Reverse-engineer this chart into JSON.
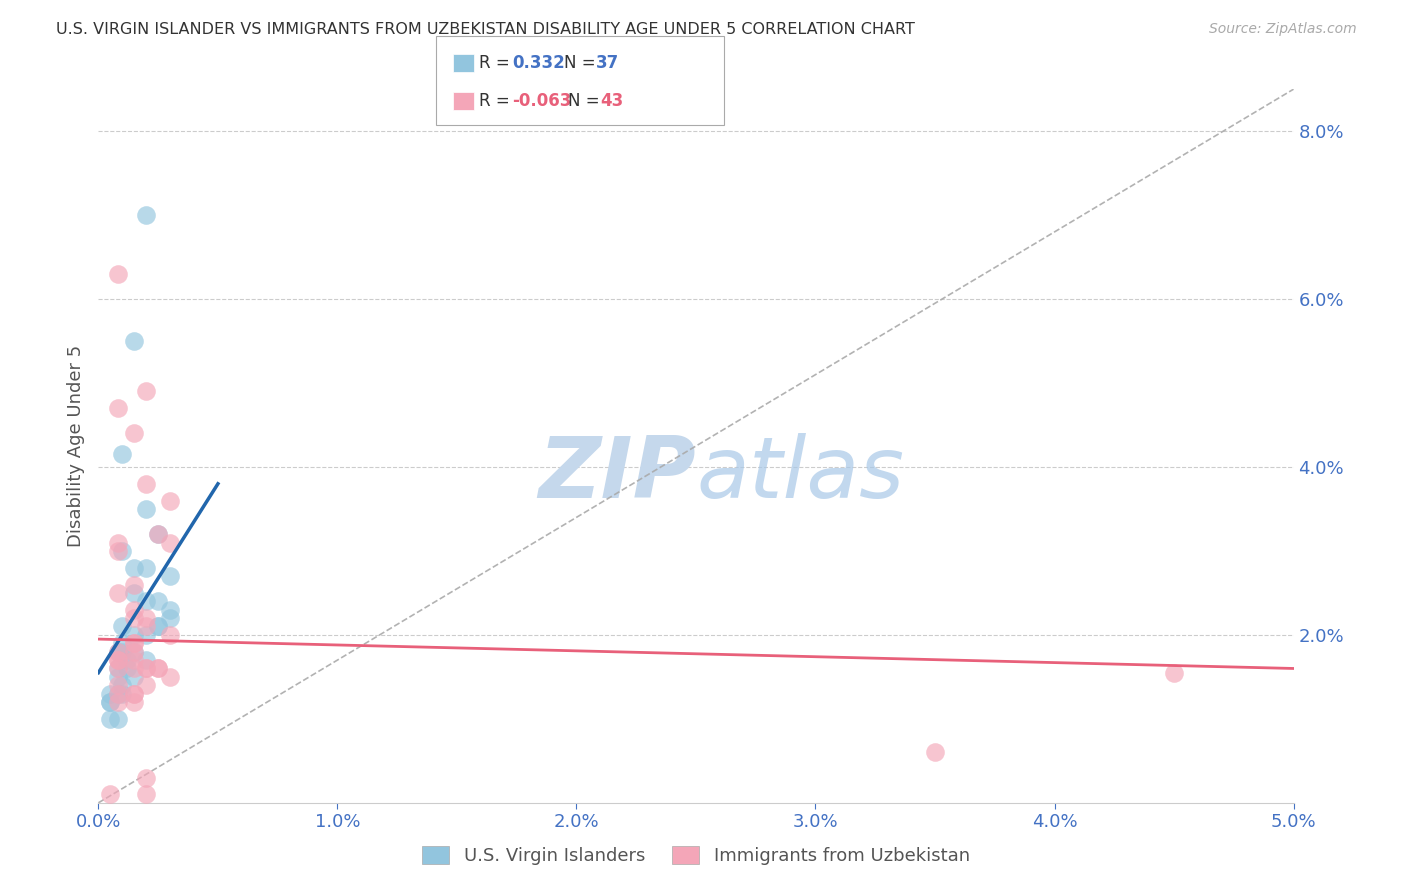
{
  "title": "U.S. VIRGIN ISLANDER VS IMMIGRANTS FROM UZBEKISTAN DISABILITY AGE UNDER 5 CORRELATION CHART",
  "source": "Source: ZipAtlas.com",
  "ylabel": "Disability Age Under 5",
  "xlim": [
    0.0,
    0.05
  ],
  "ylim": [
    0.0,
    0.085
  ],
  "yticks": [
    0.0,
    0.02,
    0.04,
    0.06,
    0.08
  ],
  "ytick_labels": [
    "",
    "2.0%",
    "4.0%",
    "6.0%",
    "8.0%"
  ],
  "xticks": [
    0.0,
    0.01,
    0.02,
    0.03,
    0.04,
    0.05
  ],
  "xtick_labels": [
    "0.0%",
    "1.0%",
    "2.0%",
    "3.0%",
    "4.0%",
    "5.0%"
  ],
  "blue_label": "U.S. Virgin Islanders",
  "pink_label": "Immigrants from Uzbekistan",
  "blue_r": "0.332",
  "blue_n": "37",
  "pink_r": "-0.063",
  "pink_n": "43",
  "blue_color": "#92c5de",
  "pink_color": "#f4a6b8",
  "blue_line_color": "#2166ac",
  "pink_line_color": "#e8607a",
  "axis_color": "#4472C4",
  "grid_color": "#cccccc",
  "watermark_color": "#dce8f5",
  "blue_x": [
    0.002,
    0.0015,
    0.001,
    0.002,
    0.0025,
    0.001,
    0.0015,
    0.002,
    0.003,
    0.0015,
    0.002,
    0.0025,
    0.003,
    0.003,
    0.0025,
    0.0025,
    0.001,
    0.0015,
    0.002,
    0.001,
    0.001,
    0.0015,
    0.0008,
    0.0012,
    0.002,
    0.0008,
    0.0012,
    0.0008,
    0.0008,
    0.0005,
    0.001,
    0.0015,
    0.001,
    0.0005,
    0.0005,
    0.0005,
    0.0008
  ],
  "blue_y": [
    0.07,
    0.055,
    0.0415,
    0.035,
    0.032,
    0.03,
    0.028,
    0.028,
    0.027,
    0.025,
    0.024,
    0.024,
    0.023,
    0.022,
    0.021,
    0.021,
    0.021,
    0.02,
    0.02,
    0.019,
    0.018,
    0.018,
    0.018,
    0.017,
    0.017,
    0.016,
    0.016,
    0.015,
    0.013,
    0.013,
    0.014,
    0.015,
    0.013,
    0.012,
    0.012,
    0.01,
    0.01
  ],
  "pink_x": [
    0.0008,
    0.0008,
    0.0015,
    0.002,
    0.002,
    0.003,
    0.0025,
    0.003,
    0.0008,
    0.0008,
    0.0015,
    0.0008,
    0.0015,
    0.0015,
    0.002,
    0.002,
    0.003,
    0.0015,
    0.0015,
    0.0008,
    0.0015,
    0.0008,
    0.0008,
    0.0015,
    0.002,
    0.0008,
    0.0015,
    0.002,
    0.0025,
    0.0025,
    0.003,
    0.002,
    0.0008,
    0.0015,
    0.0008,
    0.0015,
    0.0008,
    0.0015,
    0.045,
    0.002,
    0.035,
    0.0005,
    0.002
  ],
  "pink_y": [
    0.063,
    0.047,
    0.044,
    0.049,
    0.038,
    0.036,
    0.032,
    0.031,
    0.031,
    0.03,
    0.026,
    0.025,
    0.023,
    0.022,
    0.022,
    0.021,
    0.02,
    0.019,
    0.019,
    0.018,
    0.018,
    0.017,
    0.017,
    0.017,
    0.016,
    0.016,
    0.016,
    0.016,
    0.016,
    0.016,
    0.015,
    0.014,
    0.014,
    0.013,
    0.013,
    0.013,
    0.012,
    0.012,
    0.0155,
    0.001,
    0.006,
    0.001,
    0.003
  ],
  "blue_trend_x": [
    0.0,
    0.005
  ],
  "blue_trend_y": [
    0.0155,
    0.038
  ],
  "pink_trend_x": [
    0.0,
    0.05
  ],
  "pink_trend_y": [
    0.0195,
    0.016
  ]
}
